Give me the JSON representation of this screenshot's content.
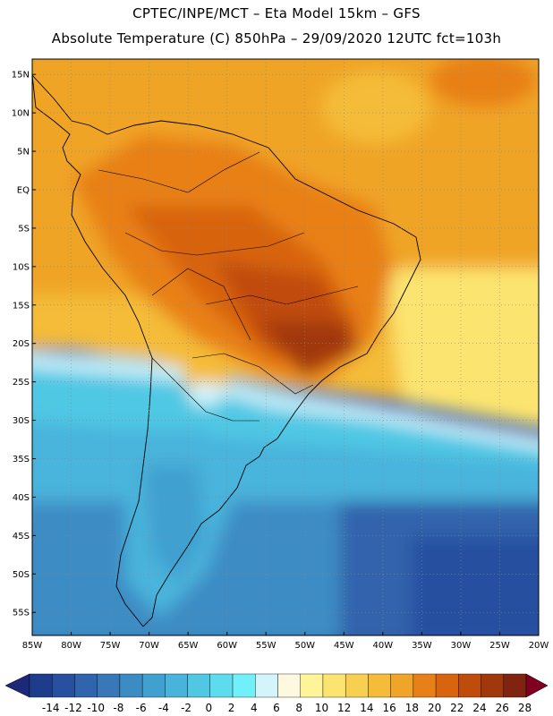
{
  "header": {
    "line1": "CPTEC/INPE/MCT –   Eta Model 15km – GFS",
    "line2": "Absolute Temperature (C) 850hPa – 29/09/2020 12UTC fct=103h"
  },
  "map": {
    "region": "South America",
    "lon_range": [
      -85,
      -20
    ],
    "lat_range": [
      -58,
      17
    ],
    "lat_labels": [
      {
        "value": 15,
        "text": "15N"
      },
      {
        "value": 10,
        "text": "10N"
      },
      {
        "value": 5,
        "text": "5N"
      },
      {
        "value": 0,
        "text": "EQ"
      },
      {
        "value": -5,
        "text": "5S"
      },
      {
        "value": -10,
        "text": "10S"
      },
      {
        "value": -15,
        "text": "15S"
      },
      {
        "value": -20,
        "text": "20S"
      },
      {
        "value": -25,
        "text": "25S"
      },
      {
        "value": -30,
        "text": "30S"
      },
      {
        "value": -35,
        "text": "35S"
      },
      {
        "value": -40,
        "text": "40S"
      },
      {
        "value": -45,
        "text": "45S"
      },
      {
        "value": -50,
        "text": "50S"
      },
      {
        "value": -55,
        "text": "55S"
      }
    ],
    "lon_labels": [
      {
        "value": -85,
        "text": "85W"
      },
      {
        "value": -80,
        "text": "80W"
      },
      {
        "value": -75,
        "text": "75W"
      },
      {
        "value": -70,
        "text": "70W"
      },
      {
        "value": -65,
        "text": "65W"
      },
      {
        "value": -60,
        "text": "60W"
      },
      {
        "value": -55,
        "text": "55W"
      },
      {
        "value": -50,
        "text": "50W"
      },
      {
        "value": -45,
        "text": "45W"
      },
      {
        "value": -40,
        "text": "40W"
      },
      {
        "value": -35,
        "text": "35W"
      },
      {
        "value": -30,
        "text": "30W"
      },
      {
        "value": -25,
        "text": "25W"
      },
      {
        "value": -20,
        "text": "20W"
      }
    ]
  },
  "colorbar": {
    "levels": [
      "-14",
      "-12",
      "-10",
      "-8",
      "-6",
      "-4",
      "-2",
      "0",
      "2",
      "4",
      "6",
      "8",
      "10",
      "12",
      "14",
      "16",
      "18",
      "20",
      "22",
      "24",
      "26",
      "28"
    ],
    "colors": [
      "#1e3c8c",
      "#2850a0",
      "#3064ac",
      "#3878b8",
      "#3c8cc4",
      "#40a0d0",
      "#48b4dc",
      "#50c8e4",
      "#5cdcec",
      "#70f0f8",
      "#d4f4fc",
      "#fff8e0",
      "#fff498",
      "#fce470",
      "#f8d050",
      "#f4bc38",
      "#f0a428",
      "#e88018",
      "#d86410",
      "#c04c0c",
      "#a0380c",
      "#802410"
    ],
    "under_color": "#1e2878",
    "over_color": "#800020"
  }
}
